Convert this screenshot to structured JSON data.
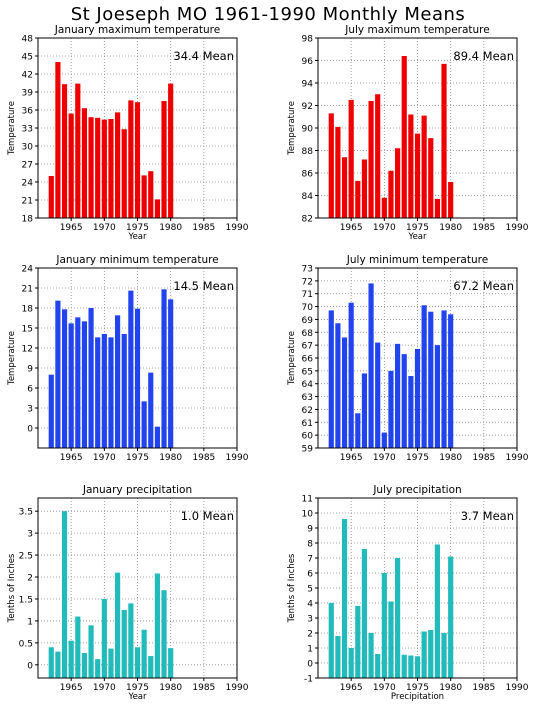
{
  "page": {
    "title": "St Joeseph MO   1961-1990 Monthly Means"
  },
  "chart_data": [
    {
      "type": "bar",
      "title": "January maximum temperature",
      "mean_label": "34.4 Mean",
      "xlabel": "Year",
      "ylabel": "Temperature",
      "color": "#ee0000",
      "xlim": [
        1960,
        1990
      ],
      "ylim": [
        18,
        48
      ],
      "yticks": [
        "18",
        "21",
        "24",
        "27",
        "30",
        "33",
        "36",
        "39",
        "42",
        "45",
        "48"
      ],
      "xticks": [
        "1965",
        "1970",
        "1975",
        "1980",
        "1985",
        "1990"
      ],
      "x": [
        1962,
        1963,
        1964,
        1965,
        1966,
        1967,
        1968,
        1969,
        1970,
        1971,
        1972,
        1973,
        1974,
        1975,
        1976,
        1977,
        1978,
        1979,
        1980,
        1981
      ],
      "values": [
        25.0,
        44.0,
        40.3,
        35.4,
        40.4,
        36.3,
        34.8,
        34.7,
        34.4,
        34.5,
        35.6,
        32.8,
        37.6,
        37.3,
        25.1,
        25.8,
        21.1,
        37.5,
        40.4,
        null
      ]
    },
    {
      "type": "bar",
      "title": "July maximum temperature",
      "mean_label": "89.4 Mean",
      "xlabel": "Year",
      "ylabel": "Temperature",
      "color": "#ee0000",
      "xlim": [
        1960,
        1990
      ],
      "ylim": [
        82,
        98
      ],
      "yticks": [
        "82",
        "84",
        "86",
        "88",
        "90",
        "92",
        "94",
        "96",
        "98"
      ],
      "xticks": [
        "1965",
        "1970",
        "1975",
        "1980",
        "1985",
        "1990"
      ],
      "x": [
        1962,
        1963,
        1964,
        1965,
        1966,
        1967,
        1968,
        1969,
        1970,
        1971,
        1972,
        1973,
        1974,
        1975,
        1976,
        1977,
        1978,
        1979,
        1980,
        1981
      ],
      "values": [
        91.3,
        90.1,
        87.4,
        92.5,
        85.3,
        87.2,
        92.4,
        93.0,
        83.8,
        86.2,
        88.2,
        96.4,
        91.2,
        89.5,
        91.1,
        89.1,
        83.7,
        95.7,
        85.2,
        null
      ]
    },
    {
      "type": "bar",
      "title": "January minimum temperature",
      "mean_label": "14.5 Mean",
      "xlabel": "",
      "ylabel": "Temperature",
      "color": "#2244ee",
      "xlim": [
        1960,
        1990
      ],
      "ylim": [
        -3,
        24
      ],
      "yticks": [
        "0",
        "3",
        "6",
        "9",
        "12",
        "15",
        "18",
        "21",
        "24"
      ],
      "xticks": [
        "1965",
        "1970",
        "1975",
        "1980",
        "1985",
        "1990"
      ],
      "x": [
        1962,
        1963,
        1964,
        1965,
        1966,
        1967,
        1968,
        1969,
        1970,
        1971,
        1972,
        1973,
        1974,
        1975,
        1976,
        1977,
        1978,
        1979,
        1980,
        1981
      ],
      "values": [
        8.0,
        19.1,
        17.8,
        15.7,
        16.6,
        16.0,
        18.0,
        13.6,
        14.1,
        13.6,
        16.9,
        14.1,
        20.6,
        17.9,
        4.0,
        8.3,
        0.2,
        20.8,
        19.3,
        null
      ]
    },
    {
      "type": "bar",
      "title": "July minimum temperature",
      "mean_label": "67.2 Mean",
      "xlabel": "",
      "ylabel": "Temperature",
      "color": "#2244ee",
      "xlim": [
        1960,
        1990
      ],
      "ylim": [
        59,
        73
      ],
      "yticks": [
        "59",
        "60",
        "61",
        "62",
        "63",
        "64",
        "65",
        "66",
        "67",
        "68",
        "69",
        "70",
        "71",
        "72",
        "73"
      ],
      "xticks": [
        "1965",
        "1970",
        "1975",
        "1980",
        "1985",
        "1990"
      ],
      "x": [
        1962,
        1963,
        1964,
        1965,
        1966,
        1967,
        1968,
        1969,
        1970,
        1971,
        1972,
        1973,
        1974,
        1975,
        1976,
        1977,
        1978,
        1979,
        1980,
        1981
      ],
      "values": [
        69.7,
        68.7,
        67.6,
        70.3,
        61.7,
        64.8,
        71.8,
        67.2,
        60.2,
        65.0,
        67.1,
        66.3,
        64.6,
        66.7,
        70.1,
        69.6,
        67.0,
        69.7,
        69.4,
        null
      ]
    },
    {
      "type": "bar",
      "title": "January precipitation",
      "mean_label": "1.0 Mean",
      "xlabel": "Year",
      "ylabel": "Tenths of Inches",
      "color": "#22bbbb",
      "xlim": [
        1960,
        1990
      ],
      "ylim": [
        -0.3,
        3.8
      ],
      "yticks": [
        "0",
        "0.5",
        "1",
        "1.5",
        "2",
        "2.5",
        "3",
        "3.5"
      ],
      "xticks": [
        "1965",
        "1970",
        "1975",
        "1980",
        "1985",
        "1990"
      ],
      "x": [
        1962,
        1963,
        1964,
        1965,
        1966,
        1967,
        1968,
        1969,
        1970,
        1971,
        1972,
        1973,
        1974,
        1975,
        1976,
        1977,
        1978,
        1979,
        1980,
        1981
      ],
      "values": [
        0.4,
        0.3,
        3.5,
        0.55,
        1.1,
        0.27,
        0.9,
        0.13,
        1.5,
        0.37,
        2.1,
        1.25,
        1.4,
        0.4,
        0.8,
        0.2,
        2.08,
        1.7,
        0.38,
        null
      ]
    },
    {
      "type": "bar",
      "title": "July precipitation",
      "mean_label": "3.7 Mean",
      "xlabel": "Precipitation",
      "ylabel": "Tenths of Inches",
      "color": "#22bbbb",
      "xlim": [
        1960,
        1990
      ],
      "ylim": [
        -1,
        11
      ],
      "yticks": [
        "-1",
        "0",
        "1",
        "2",
        "3",
        "4",
        "5",
        "6",
        "7",
        "8",
        "9",
        "10",
        "11"
      ],
      "xticks": [
        "1965",
        "1970",
        "1975",
        "1980",
        "1985",
        "1990"
      ],
      "x": [
        1962,
        1963,
        1964,
        1965,
        1966,
        1967,
        1968,
        1969,
        1970,
        1971,
        1972,
        1973,
        1974,
        1975,
        1976,
        1977,
        1978,
        1979,
        1980,
        1981
      ],
      "values": [
        4.0,
        1.8,
        9.6,
        1.0,
        3.8,
        7.6,
        2.0,
        0.6,
        6.0,
        4.1,
        7.0,
        0.55,
        0.5,
        0.45,
        2.1,
        2.2,
        7.9,
        2.0,
        7.1,
        null
      ]
    }
  ]
}
